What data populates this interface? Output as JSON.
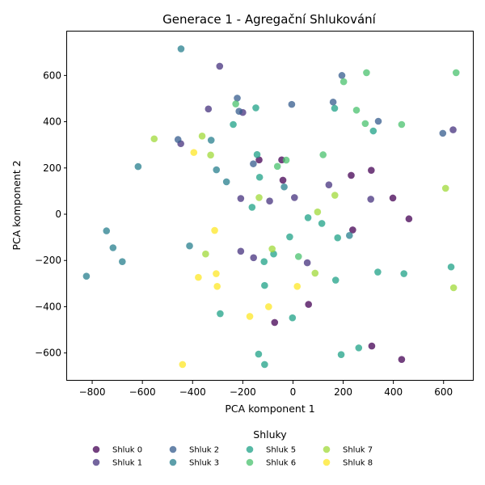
{
  "chart_data": {
    "type": "scatter",
    "title": "Generace 1 - Agregační Shlukování",
    "xlabel": "PCA komponent 1",
    "ylabel": "PCA komponent 2",
    "xlim": [
      -900,
      720
    ],
    "ylim": [
      -720,
      790
    ],
    "xticks": [
      -800,
      -600,
      -400,
      -200,
      0,
      200,
      400,
      600
    ],
    "yticks": [
      -600,
      -400,
      -200,
      0,
      200,
      400,
      600
    ],
    "grid": false,
    "legend_title": "Shluky",
    "legend_position": "bottom",
    "series": [
      {
        "name": "Shluk 0",
        "color": "#440154",
        "points": [
          [
            -45,
            235
          ],
          [
            -40,
            147
          ],
          [
            232,
            168
          ],
          [
            312,
            190
          ],
          [
            398,
            70
          ],
          [
            462,
            -20
          ],
          [
            238,
            -68
          ],
          [
            -135,
            235
          ],
          [
            62,
            -390
          ],
          [
            -73,
            -468
          ],
          [
            314,
            -570
          ],
          [
            433,
            -628
          ]
        ]
      },
      {
        "name": "Shluk 1",
        "color": "#46327e",
        "points": [
          [
            -292,
            640
          ],
          [
            -337,
            455
          ],
          [
            -447,
            305
          ],
          [
            -200,
            440
          ],
          [
            -208,
            68
          ],
          [
            -93,
            57
          ],
          [
            6,
            72
          ],
          [
            143,
            127
          ],
          [
            310,
            65
          ],
          [
            638,
            365
          ],
          [
            -208,
            -160
          ],
          [
            -157,
            -188
          ],
          [
            57,
            -210
          ]
        ]
      },
      {
        "name": "Shluk 2",
        "color": "#365c8d",
        "points": [
          [
            -222,
            502
          ],
          [
            -215,
            445
          ],
          [
            -5,
            475
          ],
          [
            160,
            485
          ],
          [
            195,
            600
          ],
          [
            340,
            402
          ],
          [
            597,
            350
          ],
          [
            -458,
            323
          ],
          [
            -158,
            218
          ]
        ]
      },
      {
        "name": "Shluk 3",
        "color": "#277f8e",
        "points": [
          [
            -446,
            715
          ],
          [
            -617,
            206
          ],
          [
            -326,
            320
          ],
          [
            -305,
            192
          ],
          [
            -265,
            140
          ],
          [
            -35,
            118
          ],
          [
            -743,
            -72
          ],
          [
            -717,
            -145
          ],
          [
            -680,
            -205
          ],
          [
            -823,
            -268
          ],
          [
            -412,
            -137
          ],
          [
            225,
            -92
          ]
        ]
      },
      {
        "name": "Shluk 5",
        "color": "#1fa187",
        "points": [
          [
            -238,
            388
          ],
          [
            -148,
            460
          ],
          [
            166,
            458
          ],
          [
            320,
            360
          ],
          [
            -143,
            258
          ],
          [
            -133,
            160
          ],
          [
            -163,
            30
          ],
          [
            60,
            -15
          ],
          [
            115,
            -40
          ],
          [
            178,
            -102
          ],
          [
            -13,
            -98
          ],
          [
            -77,
            -172
          ],
          [
            -115,
            -205
          ],
          [
            338,
            -250
          ],
          [
            442,
            -257
          ],
          [
            630,
            -228
          ],
          [
            -113,
            -308
          ],
          [
            170,
            -285
          ],
          [
            -290,
            -430
          ],
          [
            -2,
            -448
          ],
          [
            -137,
            -605
          ],
          [
            -113,
            -650
          ],
          [
            192,
            -607
          ],
          [
            262,
            -578
          ]
        ]
      },
      {
        "name": "Shluk 6",
        "color": "#4ac16d",
        "points": [
          [
            -228,
            477
          ],
          [
            202,
            573
          ],
          [
            293,
            612
          ],
          [
            650,
            612
          ],
          [
            253,
            450
          ],
          [
            288,
            392
          ],
          [
            433,
            388
          ],
          [
            -62,
            207
          ],
          [
            -27,
            234
          ],
          [
            120,
            257
          ],
          [
            22,
            -183
          ]
        ]
      },
      {
        "name": "Shluk 7",
        "color": "#a0da39",
        "points": [
          [
            -553,
            326
          ],
          [
            -362,
            338
          ],
          [
            -328,
            256
          ],
          [
            -135,
            72
          ],
          [
            167,
            82
          ],
          [
            98,
            10
          ],
          [
            608,
            112
          ],
          [
            -348,
            -172
          ],
          [
            -83,
            -150
          ],
          [
            88,
            -255
          ],
          [
            640,
            -318
          ]
        ]
      },
      {
        "name": "Shluk 8",
        "color": "#fde725",
        "points": [
          [
            -395,
            267
          ],
          [
            -312,
            -70
          ],
          [
            -306,
            -257
          ],
          [
            -302,
            -312
          ],
          [
            -377,
            -273
          ],
          [
            -172,
            -442
          ],
          [
            -97,
            -400
          ],
          [
            17,
            -312
          ],
          [
            -440,
            -650
          ]
        ]
      }
    ]
  }
}
